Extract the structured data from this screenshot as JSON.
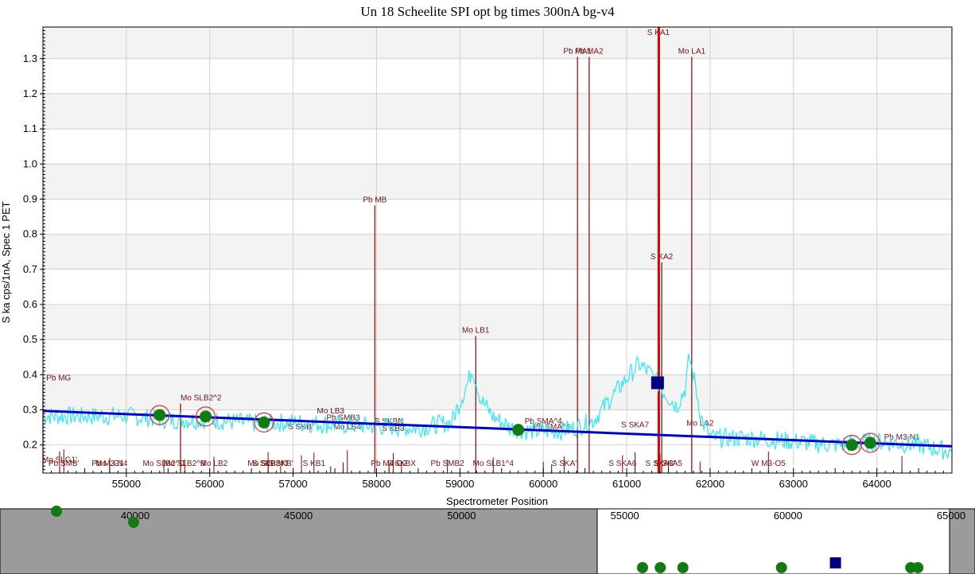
{
  "chart_data": {
    "type": "line",
    "title": "Un   18  Scheelite SPI opt bg times 300nA bg-v4",
    "xlabel": "Spectrometer Position",
    "ylabel": "S ka cps/1nA, Spec  1 PET",
    "xlim": [
      54000,
      64900
    ],
    "ylim": [
      0.12,
      1.39
    ],
    "x_ticks": [
      55000,
      56000,
      57000,
      58000,
      59000,
      60000,
      61000,
      62000,
      63000,
      64000
    ],
    "y_ticks": [
      0.2,
      0.3,
      0.4,
      0.5,
      0.6,
      0.7,
      0.8,
      0.9,
      1.0,
      1.1,
      1.2,
      1.3
    ],
    "y_tick_labels": [
      "0.2",
      "0.3",
      "0.4",
      "0.5",
      "0.6",
      "0.7",
      "0.8",
      "0.9",
      "1.0",
      "1.1",
      "1.2",
      "1.3"
    ],
    "grid": true,
    "background_fit": {
      "x": [
        54000,
        64900
      ],
      "y": [
        0.297,
        0.196
      ],
      "color": "#0000cc"
    },
    "spectrum_envelope": {
      "color": "#33e6f0",
      "x": [
        54000,
        54500,
        55000,
        55500,
        56000,
        56500,
        57000,
        57500,
        58000,
        58500,
        58900,
        59100,
        59150,
        59250,
        59400,
        59600,
        59800,
        60000,
        60200,
        60400,
        60600,
        60800,
        61000,
        61150,
        61300,
        61450,
        61600,
        61700,
        61750,
        61800,
        61900,
        62000,
        62500,
        63000,
        63500,
        64000,
        64500,
        64900
      ],
      "y": [
        0.283,
        0.282,
        0.283,
        0.272,
        0.271,
        0.262,
        0.264,
        0.258,
        0.254,
        0.248,
        0.265,
        0.38,
        0.42,
        0.33,
        0.28,
        0.25,
        0.24,
        0.24,
        0.24,
        0.25,
        0.27,
        0.33,
        0.39,
        0.43,
        0.4,
        0.35,
        0.31,
        0.36,
        0.45,
        0.4,
        0.27,
        0.22,
        0.22,
        0.21,
        0.2,
        0.21,
        0.2,
        0.18
      ]
    },
    "measured_backgrounds": {
      "color": "#117a11",
      "points": [
        {
          "x": 55400,
          "y": 0.285
        },
        {
          "x": 55950,
          "y": 0.281
        },
        {
          "x": 56650,
          "y": 0.264
        },
        {
          "x": 59700,
          "y": 0.243
        },
        {
          "x": 63700,
          "y": 0.2
        },
        {
          "x": 63920,
          "y": 0.206
        }
      ],
      "circled_x": [
        55400,
        55950,
        56650,
        63700,
        63920
      ]
    },
    "peak_marker": {
      "x": 61370,
      "y": 0.377,
      "color": "#000080"
    },
    "peak_position_line": {
      "x": 61385,
      "color": "#dd0000"
    },
    "kline_labels": [
      {
        "text": "Pb MG",
        "x": 54000,
        "y": 0.375,
        "lx": 54040
      },
      {
        "text": "Mo SLB2^2",
        "x": 55650,
        "y": 0.318,
        "lx": 55650
      },
      {
        "text": "S SKB''",
        "x": 57100,
        "y": 0.245
      },
      {
        "text": "Mo LB4",
        "x": 57650,
        "y": 0.245
      },
      {
        "text": "Pb SMB3",
        "x": 57600,
        "y": 0.27
      },
      {
        "text": "Mo LB3",
        "x": 57450,
        "y": 0.29
      },
      {
        "text": "S SKBN",
        "x": 58150,
        "y": 0.26
      },
      {
        "text": "S KB3",
        "x": 58200,
        "y": 0.24
      },
      {
        "text": "Pb MB",
        "x": 57980,
        "y": 0.882
      },
      {
        "text": "Mo LB1",
        "x": 59190,
        "y": 0.51
      },
      {
        "text": "Pb SMA^3",
        "x": 60100,
        "y": 0.245
      },
      {
        "text": "Pb SMA^4",
        "x": 60000,
        "y": 0.26
      },
      {
        "text": "Pb MA1",
        "x": 60410,
        "y": 1.305
      },
      {
        "text": "Pb MA2",
        "x": 60550,
        "y": 1.305
      },
      {
        "text": "S KA1",
        "x": 61380,
        "y": 1.39
      },
      {
        "text": "Mo LA1",
        "x": 61780,
        "y": 1.305
      },
      {
        "text": "S KA2",
        "x": 61420,
        "y": 0.72
      },
      {
        "text": "S SKA7",
        "x": 61100,
        "y": 0.25
      },
      {
        "text": "Mo LA2",
        "x": 61880,
        "y": 0.255
      },
      {
        "text": "Pb M3-N1",
        "x": 64300,
        "y": 0.215
      },
      {
        "text": "Mo SLG1'",
        "x": 54200,
        "y": 0.15
      },
      {
        "text": "Pb SMB'",
        "x": 54250,
        "y": 0.14
      },
      {
        "text": "Pb M3-N4",
        "x": 54800,
        "y": 0.14
      },
      {
        "text": "Mo LG1",
        "x": 54800,
        "y": 0.14
      },
      {
        "text": "Mo SLB2^C",
        "x": 55450,
        "y": 0.14
      },
      {
        "text": "Mo SLB2^B",
        "x": 55700,
        "y": 0.14
      },
      {
        "text": "Mo LB2",
        "x": 56050,
        "y": 0.14
      },
      {
        "text": "S SKB^4",
        "x": 56700,
        "y": 0.14
      },
      {
        "text": "Mo SLB2^1",
        "x": 56700,
        "y": 0.14
      },
      {
        "text": "S SKB'",
        "x": 56850,
        "y": 0.14
      },
      {
        "text": "S KB1",
        "x": 57250,
        "y": 0.14
      },
      {
        "text": "Pb M4-O2",
        "x": 58150,
        "y": 0.14
      },
      {
        "text": "S SKBX",
        "x": 58300,
        "y": 0.14
      },
      {
        "text": "Pb SMB2",
        "x": 58850,
        "y": 0.14
      },
      {
        "text": "Mo SLB1^4",
        "x": 59400,
        "y": 0.14
      },
      {
        "text": "S SKA'",
        "x": 60250,
        "y": 0.14
      },
      {
        "text": "S SKA6",
        "x": 60950,
        "y": 0.14
      },
      {
        "text": "S SKA3'",
        "x": 61400,
        "y": 0.14
      },
      {
        "text": "S SKA5",
        "x": 61500,
        "y": 0.14
      },
      {
        "text": "W M3-O5",
        "x": 62700,
        "y": 0.14
      }
    ],
    "navigator": {
      "x_ticks": [
        40000,
        45000,
        50000,
        55000,
        60000,
        65000
      ],
      "visible_window": [
        54000,
        64900
      ],
      "overview_points": [
        {
          "x": 37600,
          "kind": "bg"
        },
        {
          "x": 40000,
          "kind": "bg"
        },
        {
          "x": 55400,
          "kind": "bg"
        },
        {
          "x": 55950,
          "kind": "bg"
        },
        {
          "x": 56650,
          "kind": "bg"
        },
        {
          "x": 59700,
          "kind": "bg"
        },
        {
          "x": 63700,
          "kind": "bg"
        },
        {
          "x": 63920,
          "kind": "bg"
        },
        {
          "x": 61370,
          "kind": "peak"
        }
      ]
    }
  }
}
